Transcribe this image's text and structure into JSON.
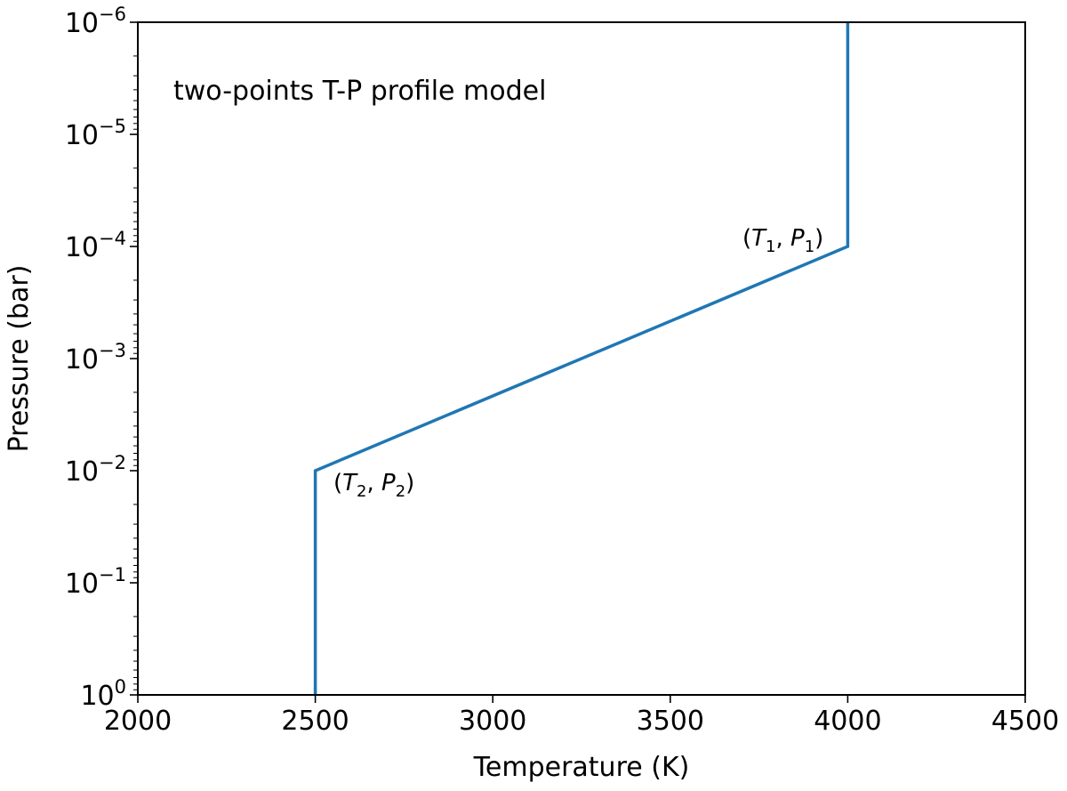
{
  "chart_data": {
    "type": "line",
    "x": [
      2500,
      2500,
      4000,
      4000
    ],
    "y": [
      1,
      0.01,
      0.0001,
      1e-06
    ],
    "color": "#1f77b4",
    "xlabel": "Temperature (K)",
    "ylabel": "Pressure (bar)",
    "xlim": [
      2000,
      4500
    ],
    "ylim": [
      1,
      1e-06
    ],
    "yscale": "log",
    "y_inverted": true,
    "grid": false,
    "xticks": [
      2000,
      2500,
      3000,
      3500,
      4000,
      4500
    ],
    "xtick_labels": [
      "2000",
      "2500",
      "3000",
      "3500",
      "4000",
      "4500"
    ],
    "yticks": [
      1,
      0.1,
      0.01,
      0.001,
      0.0001,
      1e-05,
      1e-06
    ],
    "ytick_labels": [
      {
        "base": "10",
        "exp": "0"
      },
      {
        "base": "10",
        "exp": "−1"
      },
      {
        "base": "10",
        "exp": "−2"
      },
      {
        "base": "10",
        "exp": "−3"
      },
      {
        "base": "10",
        "exp": "−4"
      },
      {
        "base": "10",
        "exp": "−5"
      },
      {
        "base": "10",
        "exp": "−6"
      }
    ],
    "annotations": [
      {
        "text": "two-points T-P profile model"
      },
      {
        "T": "T",
        "T_sub": "1",
        "P": "P",
        "P_sub": "1",
        "x": 4000,
        "y": 0.0001
      },
      {
        "T": "T",
        "T_sub": "2",
        "P": "P",
        "P_sub": "2",
        "x": 2500,
        "y": 0.01
      }
    ]
  }
}
